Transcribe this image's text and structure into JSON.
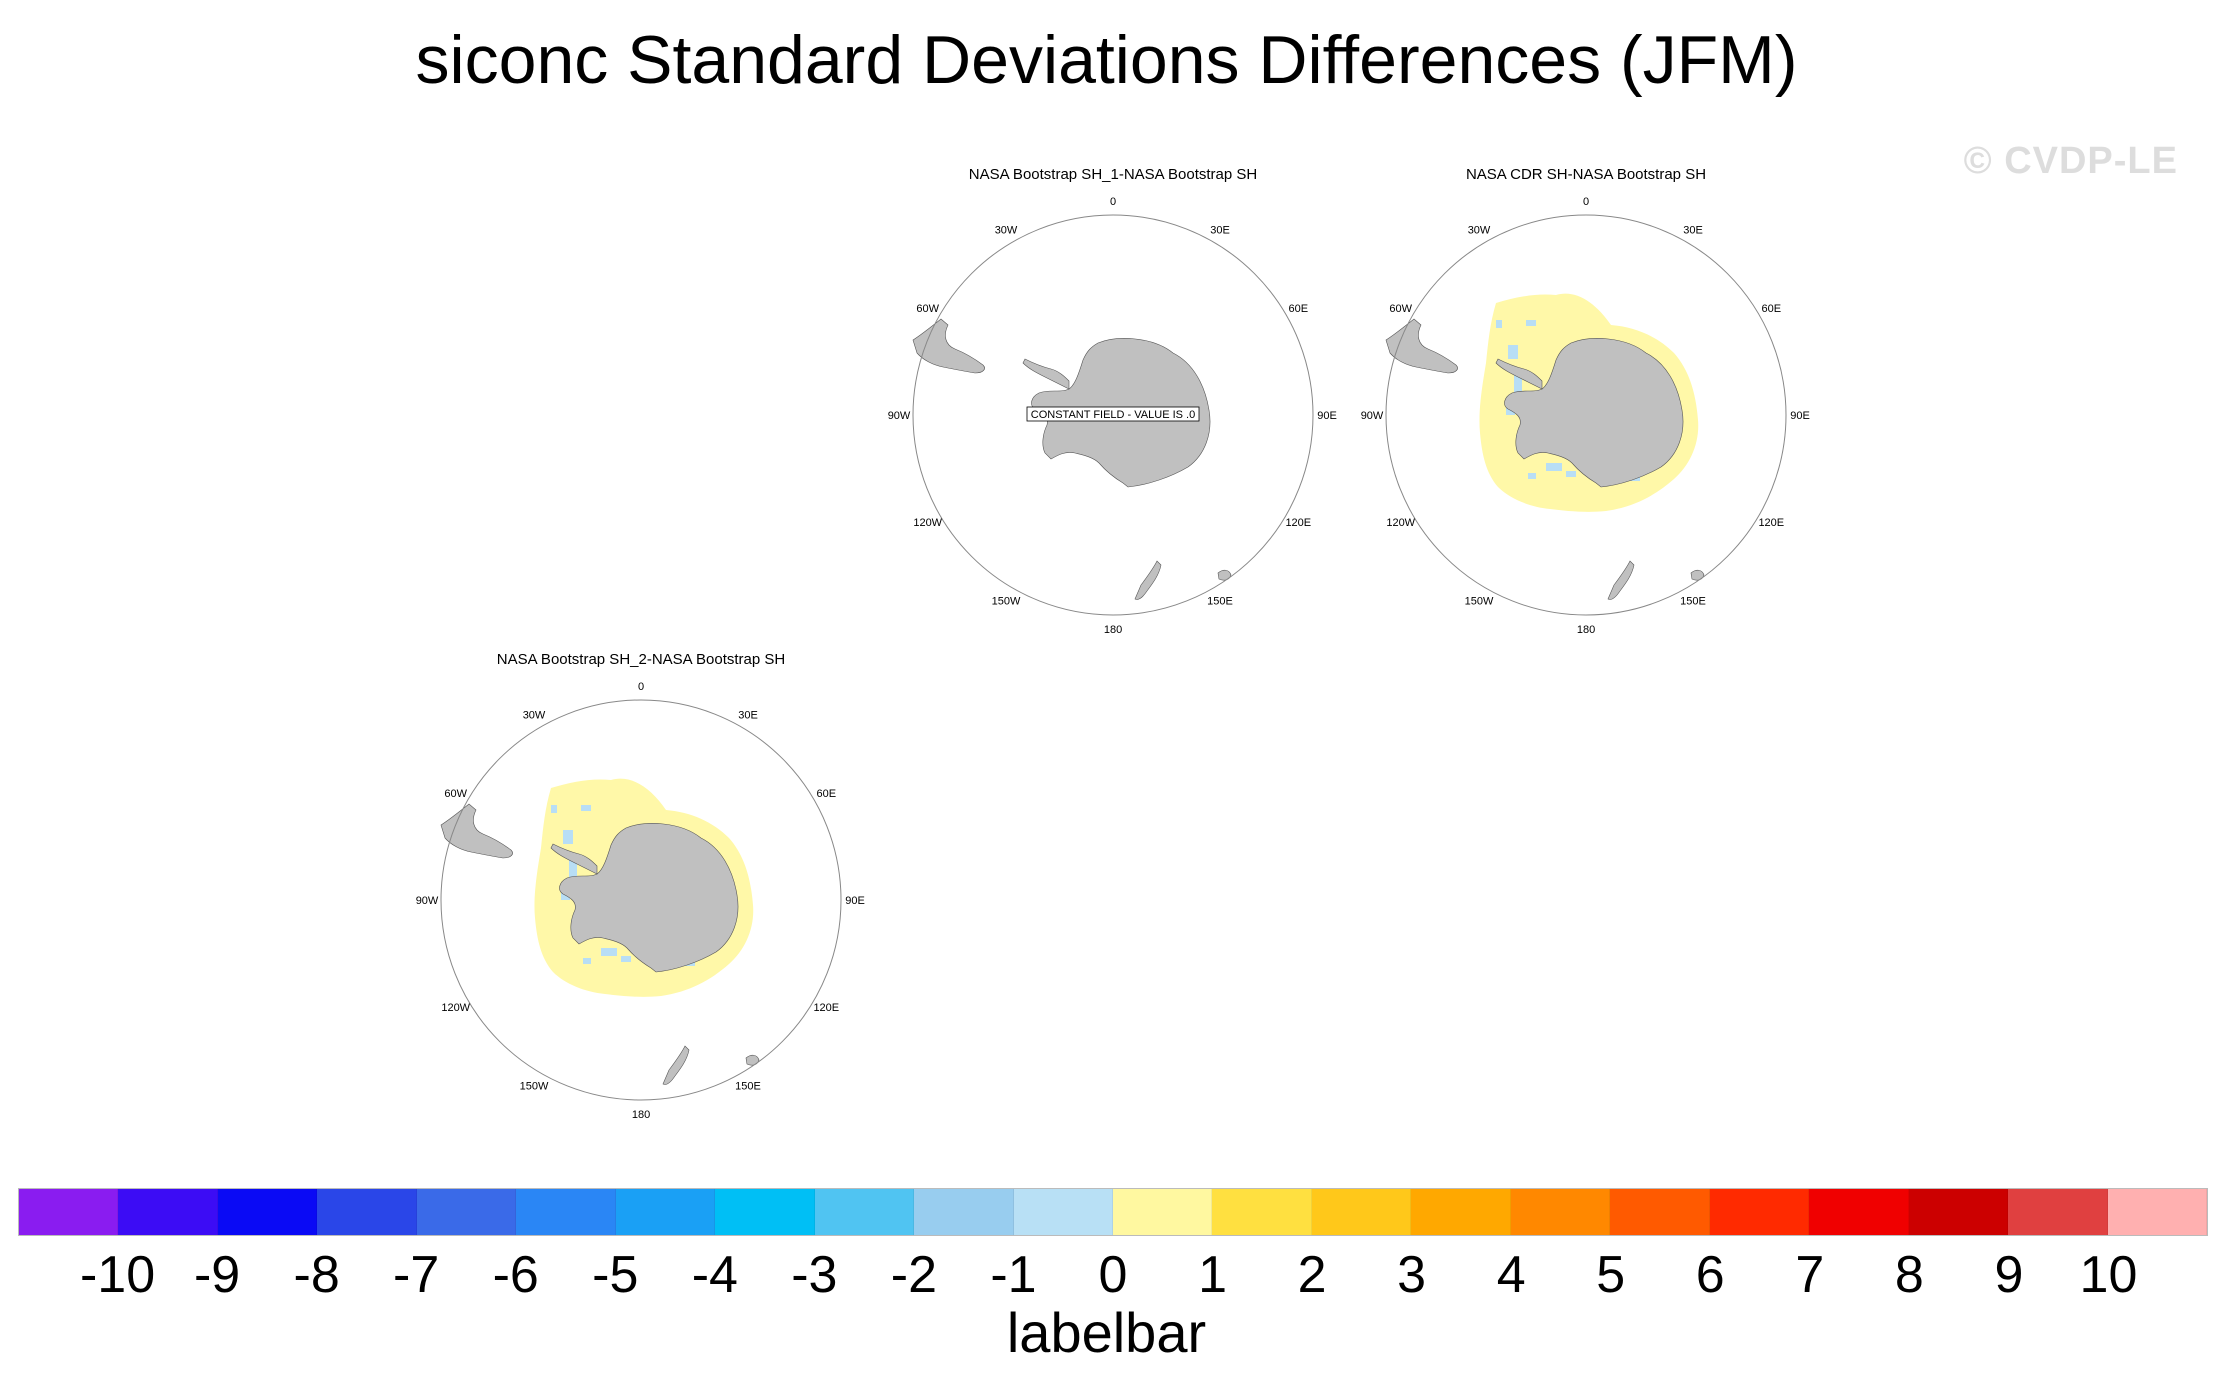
{
  "title": "siconc Standard Deviations Differences (JFM)",
  "watermark": "© CVDP-LE",
  "panels": [
    {
      "id": "sh1",
      "title": "NASA Bootstrap SH_1-NASA Bootstrap SH",
      "note": "CONSTANT FIELD - VALUE IS .0",
      "has_field": false
    },
    {
      "id": "cdr",
      "title": "NASA CDR SH-NASA Bootstrap SH",
      "note": "",
      "has_field": true
    },
    {
      "id": "sh2",
      "title": "NASA Bootstrap SH_2-NASA Bootstrap SH",
      "note": "",
      "has_field": true
    }
  ],
  "longitude_labels": [
    "0",
    "30E",
    "60E",
    "90E",
    "120E",
    "150E",
    "180",
    "150W",
    "120W",
    "90W",
    "60W",
    "30W"
  ],
  "colors": {
    "land": "#c0c0c0",
    "positive_small": "#fff8a8",
    "negative_small": "#b8def5"
  },
  "labelbar": {
    "caption": "labelbar",
    "ticks": [
      "-10",
      "-9",
      "-8",
      "-7",
      "-6",
      "-5",
      "-4",
      "-3",
      "-2",
      "-1",
      "0",
      "1",
      "2",
      "3",
      "4",
      "5",
      "6",
      "7",
      "8",
      "9",
      "10"
    ],
    "colors": [
      "#8a1cf0",
      "#3c0cf5",
      "#0a0af5",
      "#2a46e8",
      "#3a6ae8",
      "#2a86f5",
      "#1aa0f5",
      "#00bff5",
      "#50c4f2",
      "#98cdef",
      "#b8e0f5",
      "#fff8a0",
      "#ffe040",
      "#ffc81a",
      "#ffa800",
      "#ff8800",
      "#ff5a00",
      "#ff2a00",
      "#f00000",
      "#cc0000",
      "#e04040",
      "#ffb0b0"
    ]
  }
}
